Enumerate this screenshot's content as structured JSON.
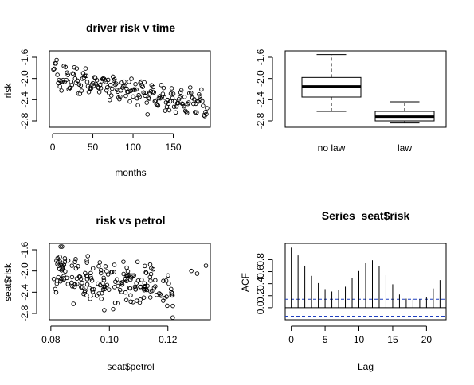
{
  "colors": {
    "background": "#ffffff",
    "ink": "#000000"
  },
  "chart_data": [
    {
      "type": "scatter",
      "title": "driver risk v time",
      "xlabel": "months",
      "ylabel": "risk",
      "xlim": [
        -4,
        196
      ],
      "ylim": [
        -2.92,
        -1.48
      ],
      "xticks": [
        0,
        50,
        100,
        150
      ],
      "yticks": [
        -1.6,
        -2.0,
        -2.4,
        -2.8
      ],
      "ytick_labels": [
        "-1.6",
        "-2.0",
        "-2.4",
        "-2.8"
      ],
      "grid": false,
      "marker": "open-circle",
      "n": 192,
      "trend": {
        "start": -1.96,
        "slope_per_month": -0.00287,
        "amplitude": 0.13,
        "period": 12,
        "noise": 0.09,
        "min": -2.9,
        "max": -1.5,
        "seed": 7
      }
    },
    {
      "type": "boxplot",
      "title": "",
      "xlabel": "",
      "ylabel": "",
      "ylim": [
        -2.92,
        -1.48
      ],
      "yticks": [
        -1.6,
        -2.0,
        -2.4,
        -2.8
      ],
      "ytick_labels": [
        "-1.6",
        "-2.0",
        "-2.4",
        "-2.8"
      ],
      "categories": [
        "no law",
        "law"
      ],
      "boxes": [
        {
          "whisker_low": -2.62,
          "q1": -2.35,
          "median": -2.15,
          "q3": -1.98,
          "whisker_high": -1.55
        },
        {
          "whisker_low": -2.84,
          "q1": -2.8,
          "median": -2.72,
          "q3": -2.62,
          "whisker_high": -2.44
        }
      ]
    },
    {
      "type": "scatter",
      "title": "risk vs petrol",
      "xlabel": "seat$petrol",
      "ylabel": "seat$risk",
      "xlim": [
        0.0795,
        0.1345
      ],
      "ylim": [
        -2.92,
        -1.48
      ],
      "xticks": [
        0.08,
        0.1,
        0.12
      ],
      "xtick_labels": [
        "0.08",
        "0.10",
        "0.12"
      ],
      "yticks": [
        -1.6,
        -2.0,
        -2.4,
        -2.8
      ],
      "ytick_labels": [
        "-1.6",
        "-2.0",
        "-2.4",
        "-2.8"
      ],
      "grid": false,
      "marker": "open-circle",
      "n": 192,
      "relation": {
        "x_min": 0.081,
        "x_max": 0.122,
        "slope": -11.0,
        "intercept": -1.1,
        "noise": 0.22,
        "seed": 11
      },
      "extra_points": [
        {
          "x": 0.128,
          "y": -2.0
        },
        {
          "x": 0.13,
          "y": -2.05
        },
        {
          "x": 0.133,
          "y": -1.9
        }
      ]
    },
    {
      "type": "bar",
      "title": "Series  seat$risk",
      "xlabel": "Lag",
      "ylabel": "ACF",
      "xlim": [
        -0.9,
        22.9
      ],
      "ylim": [
        -0.2,
        1.07
      ],
      "xticks": [
        0,
        5,
        10,
        15,
        20
      ],
      "yticks": [
        0.0,
        0.2,
        0.4,
        0.6,
        0.8
      ],
      "ytick_labels": [
        "0.0",
        "0.2",
        "0.4",
        "0.6",
        "0.8"
      ],
      "lags": [
        0,
        1,
        2,
        3,
        4,
        5,
        6,
        7,
        8,
        9,
        10,
        11,
        12,
        13,
        14,
        15,
        16,
        17,
        18,
        19,
        20,
        21,
        22
      ],
      "acf": [
        1.0,
        0.87,
        0.7,
        0.53,
        0.41,
        0.31,
        0.27,
        0.29,
        0.35,
        0.49,
        0.61,
        0.74,
        0.79,
        0.69,
        0.54,
        0.39,
        0.22,
        0.15,
        0.14,
        0.14,
        0.17,
        0.32,
        0.46
      ],
      "confidence_band": 0.141
    }
  ]
}
